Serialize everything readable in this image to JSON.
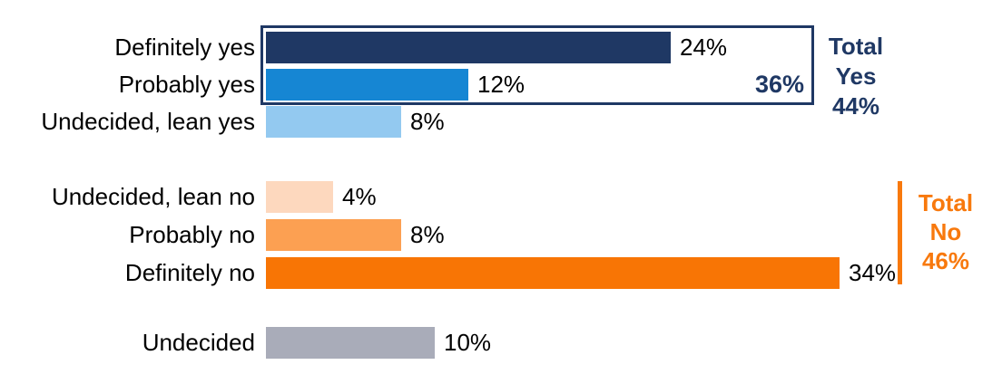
{
  "colors": {
    "navy": "#1F3864",
    "blue": "#1686D3",
    "light_blue": "#93C9F0",
    "peach": "#FDD8BE",
    "light_orange": "#FCA052",
    "orange": "#F87505",
    "orange_accent": "#F8790D",
    "gray": "#A9ACB9",
    "label_text": "#000000",
    "background": "#FFFFFF"
  },
  "chart_data": {
    "type": "bar",
    "orientation": "horizontal",
    "unit": "%",
    "title": "",
    "xlabel": "",
    "ylabel": "",
    "xlim": [
      0,
      40
    ],
    "grid": false,
    "categories": [
      "Definitely yes",
      "Probably yes",
      "Undecided, lean yes",
      "Undecided, lean no",
      "Probably no",
      "Definitely no",
      "Undecided"
    ],
    "values": [
      24,
      12,
      8,
      4,
      8,
      34,
      10
    ],
    "value_labels": [
      "24%",
      "12%",
      "8%",
      "4%",
      "8%",
      "34%",
      "10%"
    ],
    "series_colors": [
      "#1F3864",
      "#1686D3",
      "#93C9F0",
      "#FDD8BE",
      "#FCA052",
      "#F87505",
      "#A9ACB9"
    ],
    "groups": [
      {
        "name": "yes",
        "row_indexes": [
          0,
          1,
          2
        ]
      },
      {
        "name": "no",
        "row_indexes": [
          3,
          4,
          5
        ]
      },
      {
        "name": "undecided",
        "row_indexes": [
          6
        ]
      }
    ],
    "annotations": {
      "yes_box_total": "36%",
      "total_yes": {
        "lines": [
          "Total",
          "Yes",
          "44%"
        ],
        "value": "44%",
        "color": "#1F3864"
      },
      "total_no": {
        "lines": [
          "Total",
          "No",
          "46%"
        ],
        "value": "46%",
        "color": "#F8790D"
      }
    }
  }
}
